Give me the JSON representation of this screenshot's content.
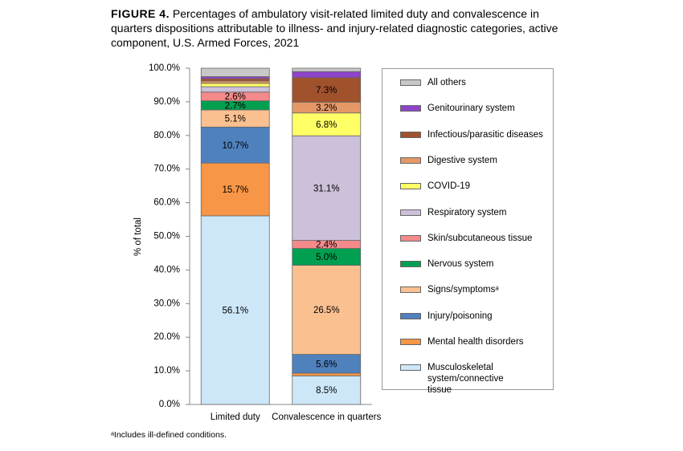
{
  "chart_data": {
    "type": "stacked-bar",
    "figure_label": "FIGURE 4.",
    "title": "Percentages of ambulatory visit-related limited duty and convalescence in quarters dispositions attributable to illness- and injury-related diagnostic categories, active component, U.S. Armed Forces, 2021",
    "y_label": "% of total",
    "footnote": "ᵃIncludes ill-defined conditions.",
    "categories": [
      "Limited duty",
      "Convalescence in quarters"
    ],
    "ylim": [
      0,
      100
    ],
    "yticks": [
      {
        "value": 0,
        "label": "0.0%"
      },
      {
        "value": 10,
        "label": "10.0%"
      },
      {
        "value": 20,
        "label": "20.0%"
      },
      {
        "value": 30,
        "label": "30.0%"
      },
      {
        "value": 40,
        "label": "40.0%"
      },
      {
        "value": 50,
        "label": "50.0%"
      },
      {
        "value": 60,
        "label": "60.0%"
      },
      {
        "value": 70,
        "label": "70.0%"
      },
      {
        "value": 80,
        "label": "80.0%"
      },
      {
        "value": 90,
        "label": "90.0%"
      },
      {
        "value": 100,
        "label": "100.0%"
      }
    ],
    "series": [
      {
        "name": "Musculoskeletal system/connective tissue",
        "color": "#cde7f8",
        "values": [
          56.1,
          8.5
        ],
        "value_labels": [
          "56.1%",
          "8.5%"
        ]
      },
      {
        "name": "Mental health disorders",
        "color": "#f79646",
        "values": [
          15.7,
          0.8
        ],
        "value_labels": [
          "15.7%",
          null
        ]
      },
      {
        "name": "Injury/poisoning",
        "color": "#4f81bd",
        "values": [
          10.7,
          5.6
        ],
        "value_labels": [
          "10.7%",
          "5.6%"
        ]
      },
      {
        "name": "Signs/symptomsᵃ",
        "color": "#fac090",
        "values": [
          5.1,
          26.5
        ],
        "value_labels": [
          "5.1%",
          "26.5%"
        ]
      },
      {
        "name": "Nervous system",
        "color": "#00a050",
        "values": [
          2.7,
          5.0
        ],
        "value_labels": [
          "2.7%",
          "5.0%"
        ]
      },
      {
        "name": "Skin/subcutaneous tissue",
        "color": "#f58a8a",
        "values": [
          2.6,
          2.4
        ],
        "value_labels": [
          "2.6%",
          "2.4%"
        ]
      },
      {
        "name": "Respiratory system",
        "color": "#ccc0da",
        "values": [
          1.6,
          31.1
        ],
        "value_labels": [
          null,
          "31.1%"
        ]
      },
      {
        "name": "COVID-19",
        "color": "#ffff66",
        "values": [
          1.0,
          6.8
        ],
        "value_labels": [
          null,
          "6.8%"
        ]
      },
      {
        "name": "Digestive system",
        "color": "#e59866",
        "values": [
          0.7,
          3.2
        ],
        "value_labels": [
          null,
          "3.2%"
        ]
      },
      {
        "name": "Infectious/parasitic diseases",
        "color": "#a0522d",
        "values": [
          0.7,
          7.3
        ],
        "value_labels": [
          null,
          "7.3%"
        ]
      },
      {
        "name": "Genitourinary system",
        "color": "#8e44c8",
        "values": [
          0.6,
          1.8
        ],
        "value_labels": [
          null,
          null
        ]
      },
      {
        "name": "All others",
        "color": "#c8c8c8",
        "values": [
          2.5,
          1.0
        ],
        "value_labels": [
          null,
          null
        ]
      }
    ]
  }
}
